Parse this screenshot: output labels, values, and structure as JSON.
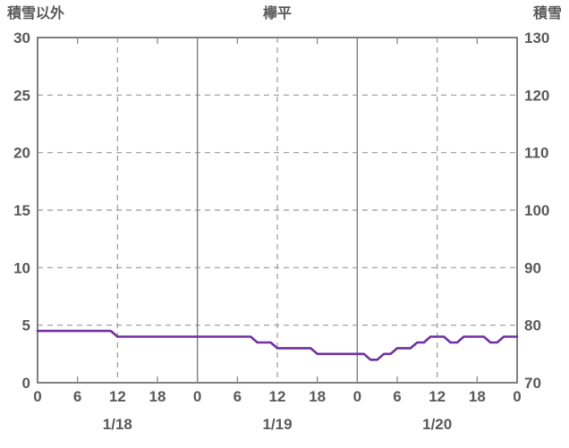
{
  "header": {
    "left": "積雪以外",
    "center": "欅平",
    "right": "積雪"
  },
  "colors": {
    "text": "#595959",
    "grid": "#999999",
    "border": "#808080",
    "line": "#7030A0"
  },
  "chart_data": {
    "type": "line",
    "title": "欅平",
    "legend_position": "none",
    "grid": {
      "horizontal_dashed": true,
      "v_dashed_at_hours": [
        12,
        36,
        60
      ],
      "v_solid_at_hours": [
        24,
        48
      ]
    },
    "left_axis": {
      "label": "積雪以外",
      "min": 0,
      "max": 30,
      "ticks": [
        0,
        5,
        10,
        15,
        20,
        25,
        30
      ]
    },
    "right_axis": {
      "label": "積雪",
      "min": 70,
      "max": 130,
      "ticks": [
        70,
        80,
        90,
        100,
        110,
        120,
        130
      ]
    },
    "x_axis": {
      "total_hours": 72,
      "tick_interval_hours": 6,
      "tick_labels": [
        "0",
        "6",
        "12",
        "18",
        "0",
        "6",
        "12",
        "18",
        "0",
        "6",
        "12",
        "18",
        "0"
      ],
      "day_labels": [
        "1/18",
        "1/19",
        "1/20"
      ]
    },
    "series": [
      {
        "name": "積雪",
        "axis": "right",
        "color": "#7030A0",
        "x_hours": [
          0,
          1,
          2,
          3,
          4,
          5,
          6,
          7,
          8,
          9,
          10,
          11,
          12,
          13,
          14,
          15,
          16,
          17,
          18,
          19,
          20,
          21,
          22,
          23,
          24,
          25,
          26,
          27,
          28,
          29,
          30,
          31,
          32,
          33,
          34,
          35,
          36,
          37,
          38,
          39,
          40,
          41,
          42,
          43,
          44,
          45,
          46,
          47,
          48,
          49,
          50,
          51,
          52,
          53,
          54,
          55,
          56,
          57,
          58,
          59,
          60,
          61,
          62,
          63,
          64,
          65,
          66,
          67,
          68,
          69,
          70,
          71,
          72
        ],
        "values": [
          79,
          79,
          79,
          79,
          79,
          79,
          79,
          79,
          79,
          79,
          79,
          79,
          78,
          78,
          78,
          78,
          78,
          78,
          78,
          78,
          78,
          78,
          78,
          78,
          78,
          78,
          78,
          78,
          78,
          78,
          78,
          78,
          78,
          77,
          77,
          77,
          76,
          76,
          76,
          76,
          76,
          76,
          75,
          75,
          75,
          75,
          75,
          75,
          75,
          75,
          74,
          74,
          75,
          75,
          76,
          76,
          76,
          77,
          77,
          78,
          78,
          78,
          77,
          77,
          78,
          78,
          78,
          78,
          77,
          77,
          78,
          78,
          78
        ]
      }
    ]
  }
}
